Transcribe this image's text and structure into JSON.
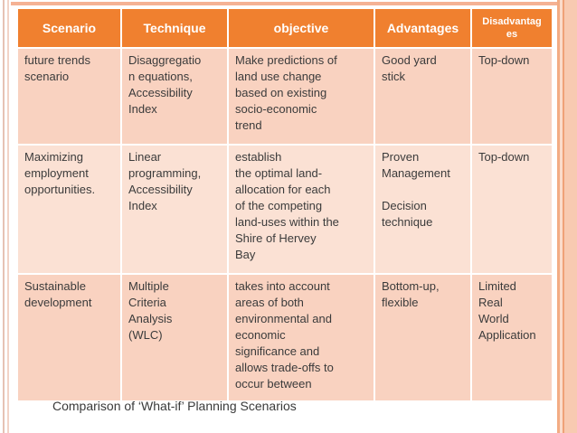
{
  "slide": {
    "caption": "Comparison of ‘What-if’ Planning Scenarios"
  },
  "table": {
    "headers": [
      "Scenario",
      "Technique",
      "objective",
      "Advantages",
      "Disadvantag\nes"
    ],
    "rows": [
      {
        "scenario": "future trends\nscenario",
        "technique": "Disaggregatio\nn equations,\nAccessibility\nIndex",
        "objective": "Make predictions of\nland use change\nbased on existing\nsocio-economic\ntrend",
        "advantages": "Good yard\nstick",
        "disadvantages": "Top-down"
      },
      {
        "scenario": "Maximizing\nemployment\nopportunities.",
        "technique": "Linear\nprogramming,\nAccessibility\nIndex",
        "objective": "establish\nthe optimal land-\nallocation for each\nof the competing\nland-uses within the\nShire of  Hervey\nBay",
        "advantages": "Proven\nManagement\n\nDecision\ntechnique",
        "disadvantages": "Top-down"
      },
      {
        "scenario": "Sustainable\ndevelopment",
        "technique": "Multiple\nCriteria\nAnalysis\n(WLC)",
        "objective": "takes into account\nareas of both\nenvironmental and\neconomic\nsignificance and\nallows trade-offs to\noccur between",
        "advantages": "Bottom-up,\nflexible",
        "disadvantages": "Limited\nReal\nWorld\nApplication"
      }
    ]
  },
  "colors": {
    "header-bg": "#f0802f",
    "header-text": "#ffffff",
    "row-odd-bg": "#f9d2c0",
    "row-even-bg": "#fbe1d4",
    "cell-text": "#3b3b3b",
    "grid-line": "#ffffff",
    "border-accent": "#f5b294",
    "border-light": "#f8cab1"
  }
}
